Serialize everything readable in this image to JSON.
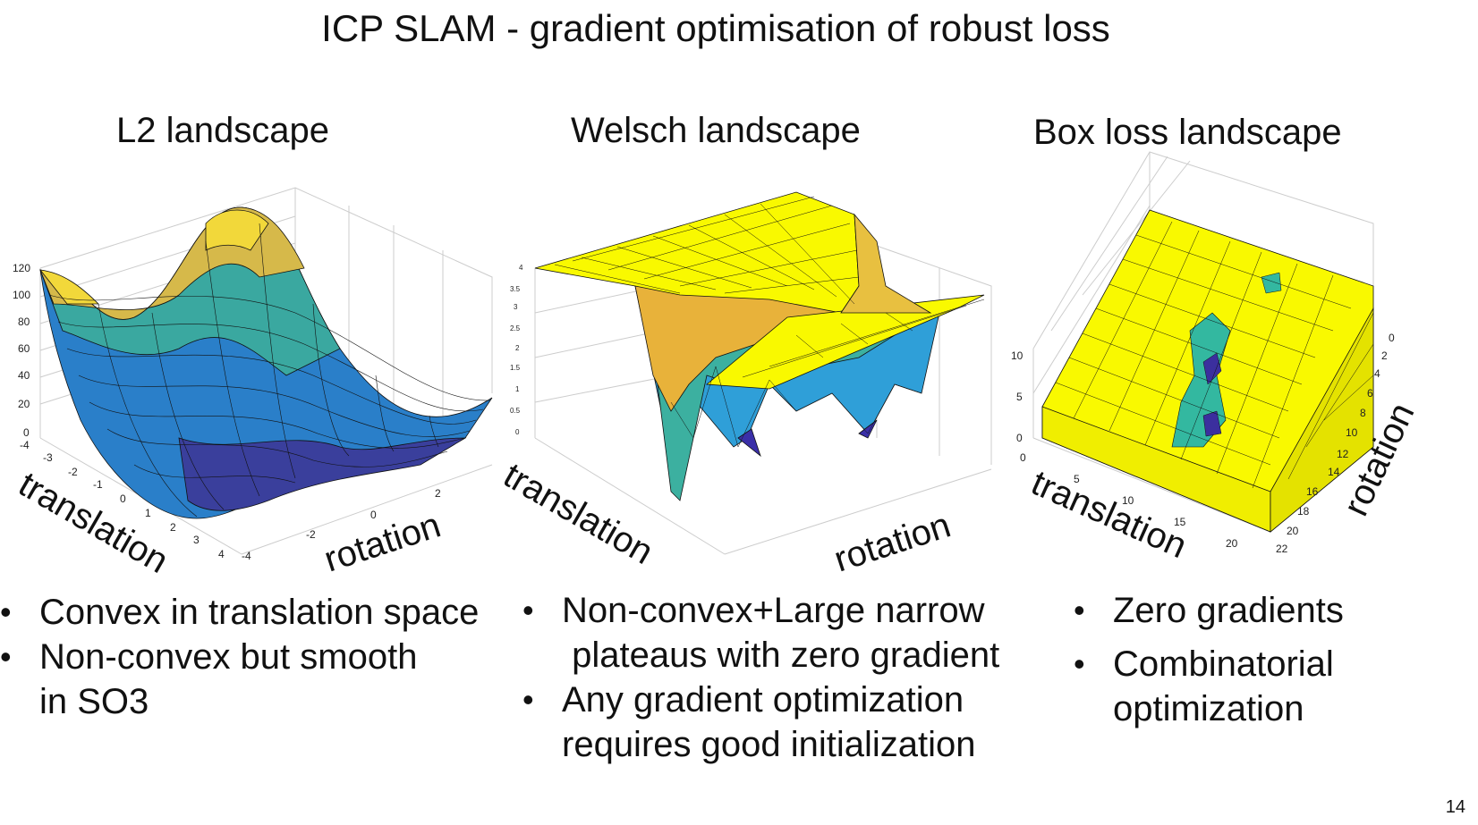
{
  "title": "ICP SLAM - gradient optimisation of robust loss",
  "panels": [
    {
      "title": "L2 landscape",
      "xlabel": "translation",
      "ylabel": "rotation",
      "z_ticks": [
        "120",
        "100",
        "80",
        "60",
        "40",
        "20",
        "0"
      ],
      "x_ticks": [
        "-4",
        "-3",
        "-2",
        "-1",
        "0",
        "1",
        "2",
        "3",
        "4"
      ],
      "y_ticks": [
        "-4",
        "-2",
        "0",
        "2"
      ],
      "bullets": [
        "Convex in translation space",
        "Non-convex but smooth\nin SO3"
      ]
    },
    {
      "title": "Welsch landscape",
      "xlabel": "translation",
      "ylabel": "rotation",
      "z_ticks": [
        "4",
        "3.5",
        "3",
        "2.5",
        "2",
        "1.5",
        "1",
        "0.5",
        "0"
      ],
      "bullets": [
        "Non-convex+Large narrow\n plateaus with zero gradient",
        "Any gradient optimization\nrequires good initialization"
      ]
    },
    {
      "title": "Box loss landscape",
      "xlabel": "translation",
      "ylabel": "rotation",
      "z_ticks": [
        "10",
        "5",
        "0"
      ],
      "x_ticks": [
        "0",
        "5",
        "10",
        "15",
        "20"
      ],
      "y_ticks": [
        "0",
        "2",
        "4",
        "6",
        "8",
        "10",
        "12",
        "14",
        "16",
        "18",
        "20",
        "22"
      ],
      "bullets": [
        "Zero gradients",
        "Combinatorial\noptimization"
      ]
    }
  ],
  "page_number": "14",
  "colors": {
    "yellow": "#f9f900",
    "teal": "#33b8a0",
    "dark_blue": "#3b2f9e"
  }
}
